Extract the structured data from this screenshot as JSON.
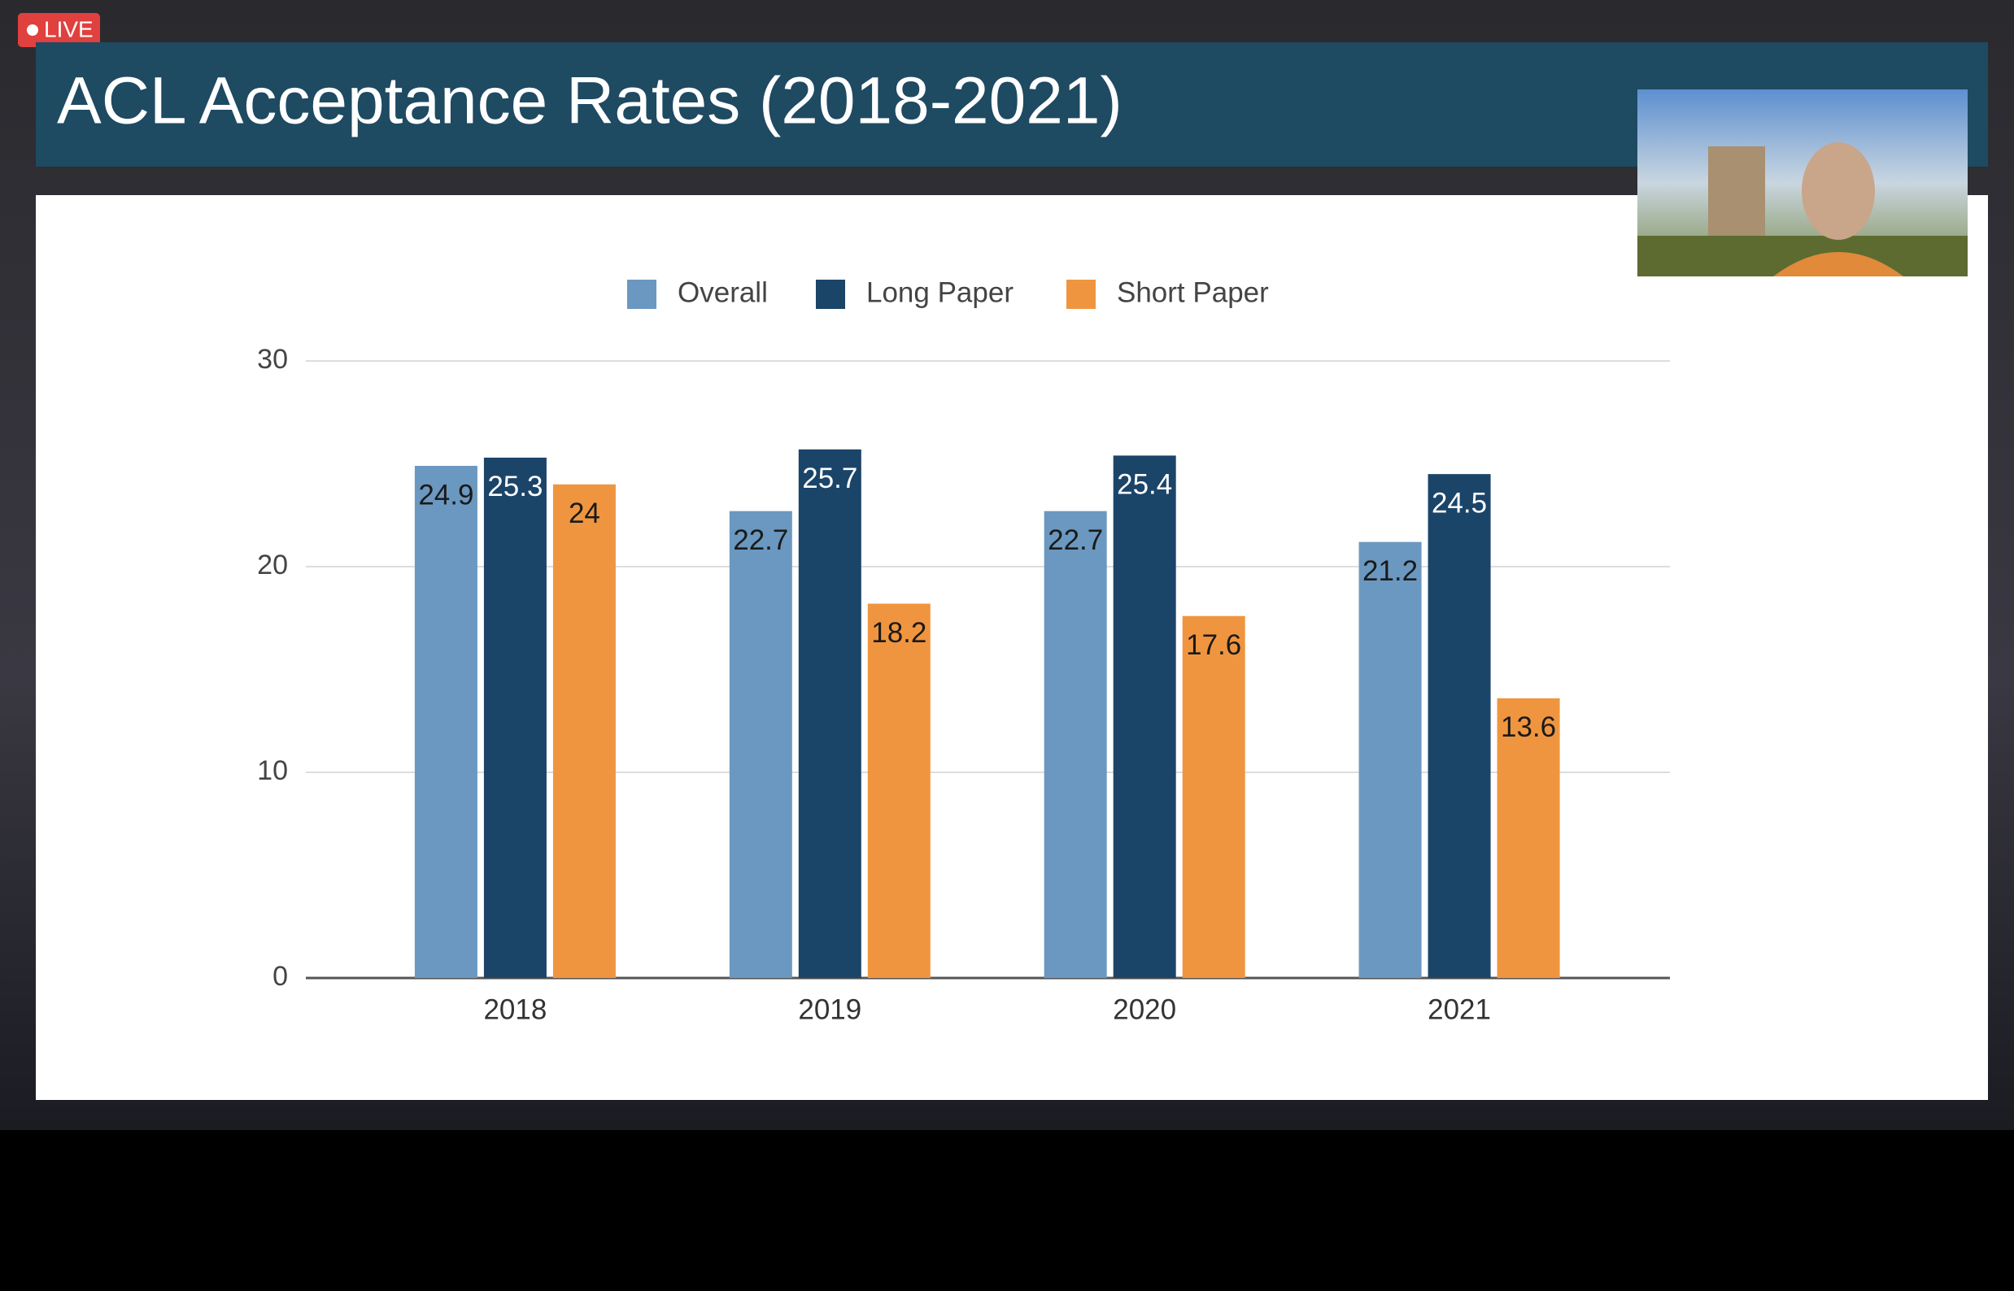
{
  "live_badge": "LIVE",
  "chart_data": {
    "type": "bar",
    "title": "ACL Acceptance Rates (2018-2021)",
    "categories": [
      "2018",
      "2019",
      "2020",
      "2021"
    ],
    "series": [
      {
        "name": "Overall",
        "color": "#6b98c0",
        "values": [
          24.9,
          22.7,
          22.7,
          21.2
        ]
      },
      {
        "name": "Long Paper",
        "color": "#1b4469",
        "values": [
          25.3,
          25.7,
          25.4,
          24.5
        ]
      },
      {
        "name": "Short Paper",
        "color": "#f0953f",
        "values": [
          24,
          18.2,
          17.6,
          13.6
        ]
      }
    ],
    "ylim": [
      0,
      30
    ],
    "yticks": [
      0,
      10,
      20,
      30
    ],
    "grid": true,
    "legend": "top"
  }
}
